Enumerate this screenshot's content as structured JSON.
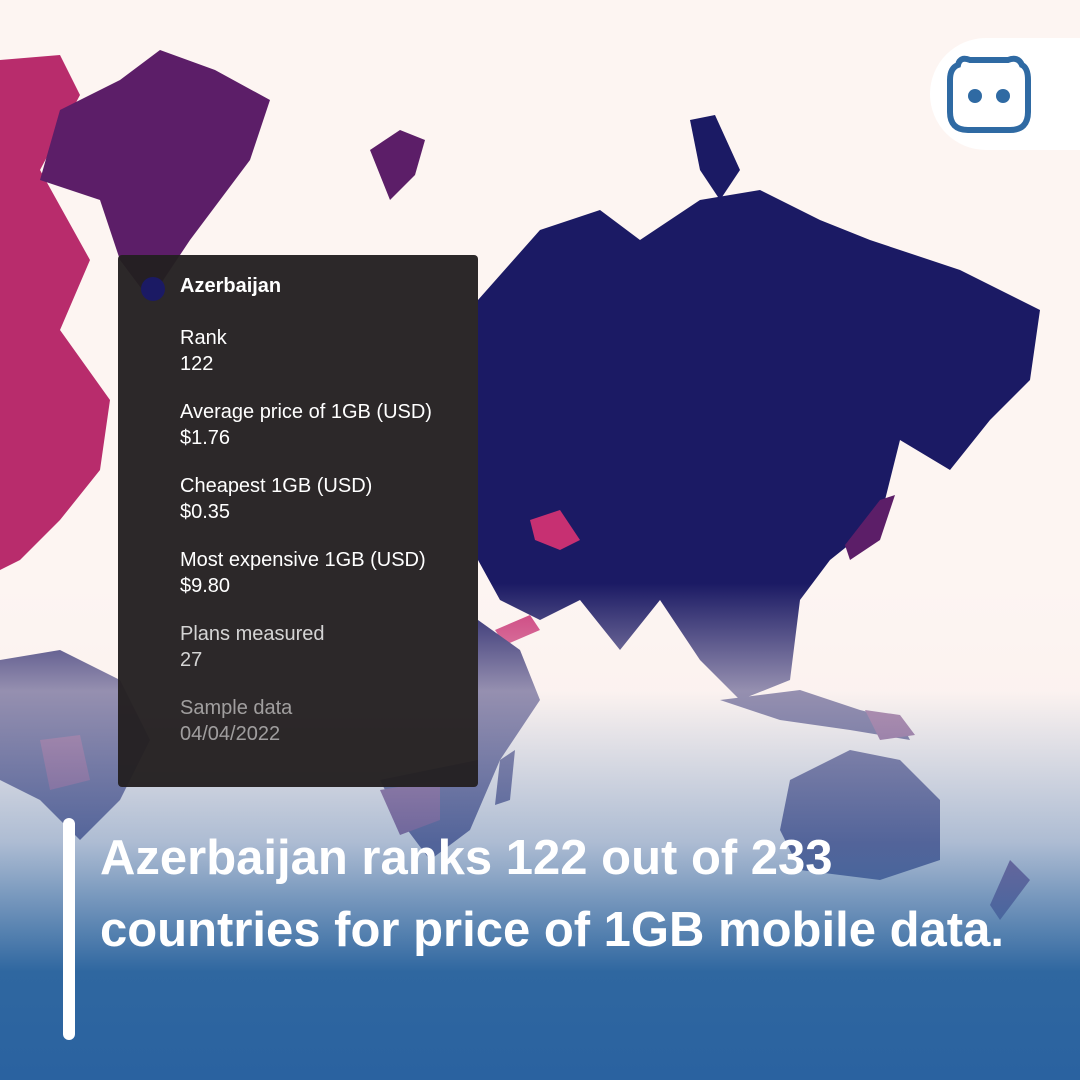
{
  "tooltip": {
    "country": "Azerbaijan",
    "fields": [
      {
        "label": "Rank",
        "value": "122"
      },
      {
        "label": "Average price of 1GB (USD)",
        "value": "$1.76"
      },
      {
        "label": "Cheapest 1GB (USD)",
        "value": "$0.35"
      },
      {
        "label": "Most expensive 1GB (USD)",
        "value": "$9.80"
      },
      {
        "label": "Plans measured",
        "value": "27"
      },
      {
        "label": "Sample data",
        "value": "04/04/2022"
      }
    ]
  },
  "headline": "Azerbaijan ranks 122 out of 233 countries for price of 1GB mobile data."
}
